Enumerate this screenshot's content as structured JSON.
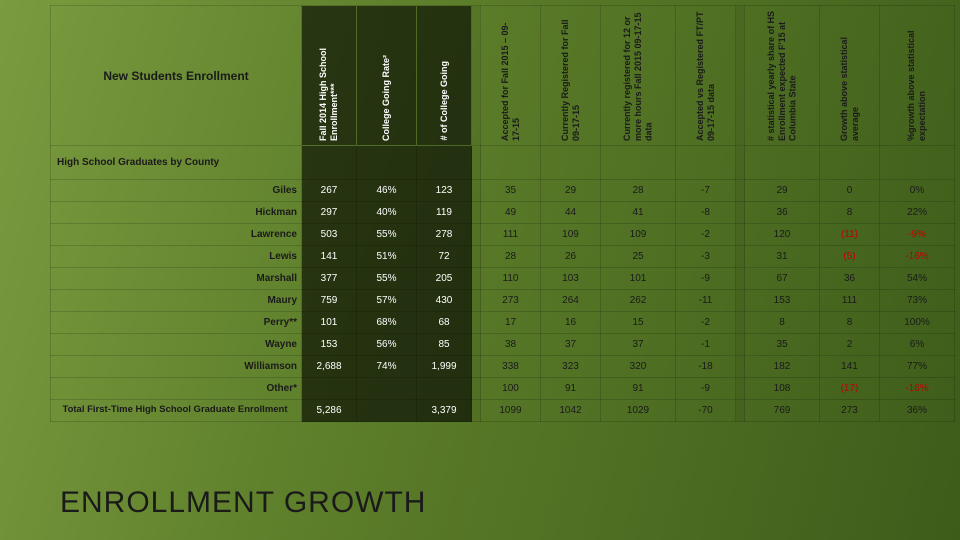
{
  "title": "New Students Enrollment",
  "footer": "ENROLLMENT  GROWTH",
  "headers": {
    "h1": "Fall 2014 High School Enrollment***",
    "h2": "College Going Rate²",
    "h3": "# of College Going",
    "h4": "Accepted for Fall 2015 – 09-17-15",
    "h5": "Currently Registered for Fall 09-17-15",
    "h6": "Currently registered for 12 or more hours Fall 2015 09-17-15 data",
    "h7": "Accepted vs Registered FT/PT 09-17-15 data",
    "h8": "# statistical yearly share of HS Enrollment expected F'15 at Columbia State",
    "h9": "Growth above statistical average",
    "h10": "%growth above statistical expectation"
  },
  "section": "High School Graduates by County",
  "rows": [
    {
      "county": "Giles",
      "v": [
        "267",
        "46%",
        "123",
        "35",
        "29",
        "28",
        "-7",
        "29",
        "0",
        "0%"
      ]
    },
    {
      "county": "Hickman",
      "v": [
        "297",
        "40%",
        "119",
        "49",
        "44",
        "41",
        "-8",
        "36",
        "8",
        "22%"
      ]
    },
    {
      "county": "Lawrence",
      "v": [
        "503",
        "55%",
        "278",
        "111",
        "109",
        "109",
        "-2",
        "120",
        "(11)",
        "-9%"
      ]
    },
    {
      "county": "Lewis",
      "v": [
        "141",
        "51%",
        "72",
        "28",
        "26",
        "25",
        "-3",
        "31",
        "(5)",
        "-16%"
      ]
    },
    {
      "county": "Marshall",
      "v": [
        "377",
        "55%",
        "205",
        "110",
        "103",
        "101",
        "-9",
        "67",
        "36",
        "54%"
      ]
    },
    {
      "county": "Maury",
      "v": [
        "759",
        "57%",
        "430",
        "273",
        "264",
        "262",
        "-11",
        "153",
        "111",
        "73%"
      ]
    },
    {
      "county": "Perry**",
      "v": [
        "101",
        "68%",
        "68",
        "17",
        "16",
        "15",
        "-2",
        "8",
        "8",
        "100%"
      ]
    },
    {
      "county": "Wayne",
      "v": [
        "153",
        "56%",
        "85",
        "38",
        "37",
        "37",
        "-1",
        "35",
        "2",
        "6%"
      ]
    },
    {
      "county": "Williamson",
      "v": [
        "2,688",
        "74%",
        "1,999",
        "338",
        "323",
        "320",
        "-18",
        "182",
        "141",
        "77%"
      ]
    }
  ],
  "other": {
    "label": "Other*",
    "v": [
      "",
      "",
      "",
      "100",
      "91",
      "91",
      "-9",
      "108",
      "(17)",
      "-16%"
    ]
  },
  "total": {
    "label": "Total First-Time High School Graduate Enrollment",
    "v": [
      "5,286",
      "",
      "3,379",
      "1099",
      "1042",
      "1029",
      "-70",
      "769",
      "273",
      "36%"
    ]
  },
  "neg_cells": [
    "-9%",
    "-16%",
    "(11)",
    "(5)",
    "(17)"
  ]
}
